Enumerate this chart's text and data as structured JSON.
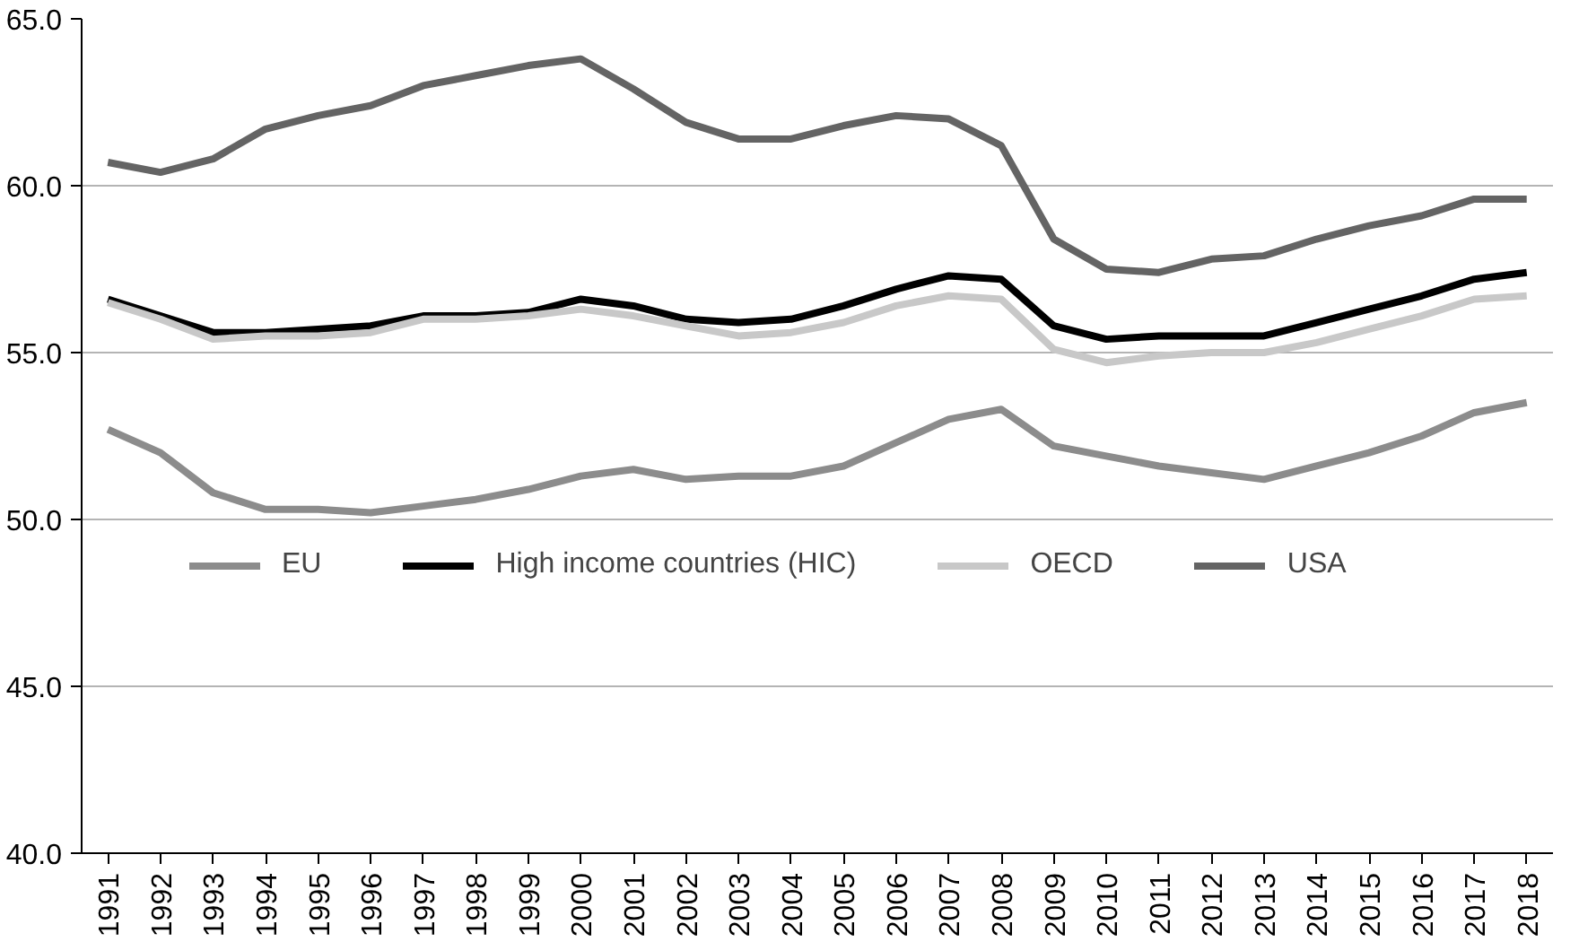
{
  "chart_data": {
    "type": "line",
    "categories": [
      "1991",
      "1992",
      "1993",
      "1994",
      "1995",
      "1996",
      "1997",
      "1998",
      "1999",
      "2000",
      "2001",
      "2002",
      "2003",
      "2004",
      "2005",
      "2006",
      "2007",
      "2008",
      "2009",
      "2010",
      "2011",
      "2012",
      "2013",
      "2014",
      "2015",
      "2016",
      "2017",
      "2018"
    ],
    "series": [
      {
        "name": "EU",
        "color": "#8c8c8c",
        "values": [
          52.7,
          52.0,
          50.8,
          50.3,
          50.3,
          50.2,
          50.4,
          50.6,
          50.9,
          51.3,
          51.5,
          51.2,
          51.3,
          51.3,
          51.6,
          52.3,
          53.0,
          53.3,
          52.2,
          51.9,
          51.6,
          51.4,
          51.2,
          51.6,
          52.0,
          52.5,
          53.2,
          53.5
        ]
      },
      {
        "name": "High income countries (HIC)",
        "color": "#000000",
        "values": [
          56.6,
          56.1,
          55.6,
          55.6,
          55.7,
          55.8,
          56.1,
          56.1,
          56.2,
          56.6,
          56.4,
          56.0,
          55.9,
          56.0,
          56.4,
          56.9,
          57.3,
          57.2,
          55.8,
          55.4,
          55.5,
          55.5,
          55.5,
          55.9,
          56.3,
          56.7,
          57.2,
          57.4
        ]
      },
      {
        "name": "OECD",
        "color": "#c8c8c8",
        "values": [
          56.5,
          56.0,
          55.4,
          55.5,
          55.5,
          55.6,
          56.0,
          56.0,
          56.1,
          56.3,
          56.1,
          55.8,
          55.5,
          55.6,
          55.9,
          56.4,
          56.7,
          56.6,
          55.1,
          54.7,
          54.9,
          55.0,
          55.0,
          55.3,
          55.7,
          56.1,
          56.6,
          56.7
        ]
      },
      {
        "name": "USA",
        "color": "#646464",
        "values": [
          60.7,
          60.4,
          60.8,
          61.7,
          62.1,
          62.4,
          63.0,
          63.3,
          63.6,
          63.8,
          62.9,
          61.9,
          61.4,
          61.4,
          61.8,
          62.1,
          62.0,
          61.2,
          58.4,
          57.5,
          57.4,
          57.8,
          57.9,
          58.4,
          58.8,
          59.1,
          59.6,
          59.6
        ]
      }
    ],
    "ylim": [
      40,
      65
    ],
    "yticks": [
      {
        "value": 40,
        "label": "40.0"
      },
      {
        "value": 45,
        "label": "45.0"
      },
      {
        "value": 50,
        "label": "50.0"
      },
      {
        "value": 55,
        "label": "55.0"
      },
      {
        "value": 60,
        "label": "60.0"
      },
      {
        "value": 65,
        "label": "65.0"
      }
    ],
    "grid": "y",
    "legend": "bottom",
    "marker": "none",
    "line_style": "solid"
  }
}
